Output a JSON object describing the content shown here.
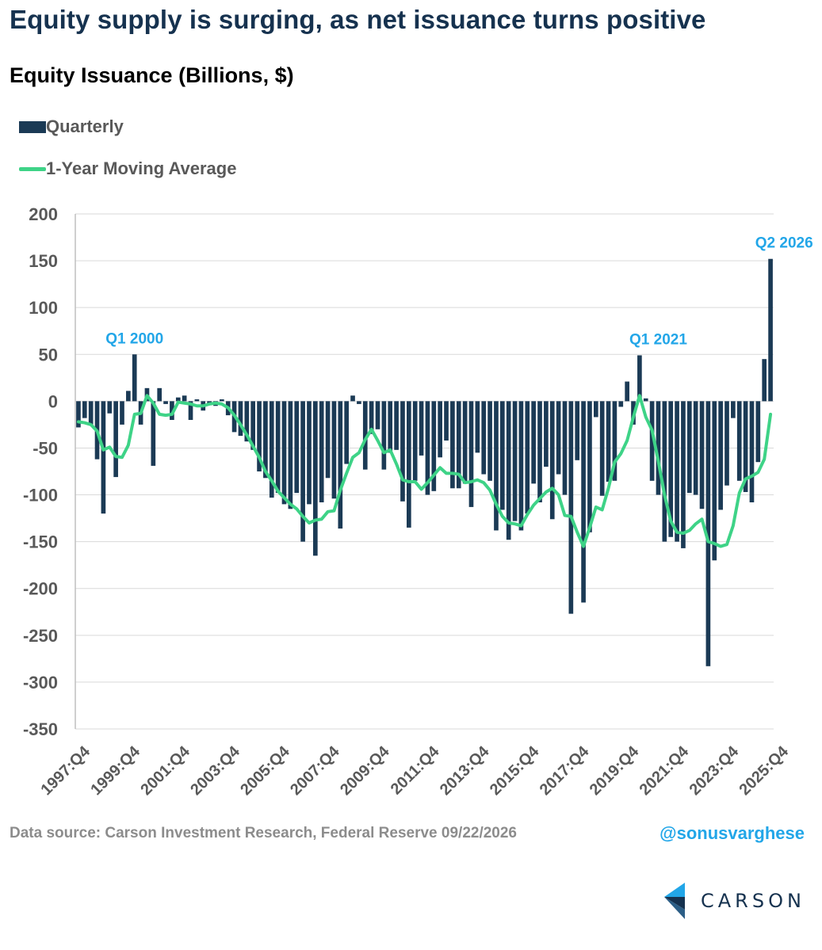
{
  "header": {
    "title": "Equity supply is surging, as net issuance turns positive"
  },
  "colors": {
    "bar": "#1b3a55",
    "line": "#3ed387",
    "annotation": "#22a6e8",
    "axis_text": "#595959",
    "grid": "#d9d9d9"
  },
  "chart_data": {
    "type": "bar",
    "title": "Equity Issuance (Billions, $)",
    "xlabel": "",
    "ylabel": "",
    "ylim": [
      -350,
      200
    ],
    "yticks": [
      200,
      150,
      100,
      50,
      0,
      -50,
      -100,
      -150,
      -200,
      -250,
      -300,
      -350
    ],
    "grid": true,
    "legend_position": "top-left",
    "x_tick_labels": [
      "1997:Q4",
      "1999:Q4",
      "2001:Q4",
      "2003:Q4",
      "2005:Q4",
      "2007:Q4",
      "2009:Q4",
      "2011:Q4",
      "2013:Q4",
      "2015:Q4",
      "2017:Q4",
      "2019:Q4",
      "2021:Q4",
      "2023:Q4",
      "2025:Q4"
    ],
    "first_period": "1997:Q4",
    "last_period": "2026:Q2",
    "series": [
      {
        "name": "Quarterly",
        "type": "bar",
        "values": [
          -28,
          -18,
          -25,
          -62,
          -120,
          -13,
          -81,
          -25,
          11,
          50,
          -25,
          14,
          -69,
          14,
          -3,
          -20,
          4,
          6,
          -20,
          2,
          -10,
          -4,
          -5,
          2,
          -15,
          -33,
          -37,
          -43,
          -52,
          -75,
          -82,
          -103,
          -98,
          -110,
          -115,
          -98,
          -150,
          -110,
          -165,
          -108,
          -82,
          -104,
          -136,
          -67,
          6,
          -3,
          -73,
          -35,
          -30,
          -73,
          -55,
          -52,
          -107,
          -135,
          -85,
          -58,
          -100,
          -96,
          -60,
          -42,
          -93,
          -93,
          -88,
          -113,
          -55,
          -78,
          -85,
          -138,
          -116,
          -148,
          -128,
          -138,
          -120,
          -88,
          -108,
          -70,
          -126,
          -78,
          -100,
          -227,
          -63,
          -215,
          -140,
          -17,
          -101,
          -86,
          -85,
          -6,
          21,
          -25,
          49,
          3,
          -85,
          -100,
          -150,
          -145,
          -150,
          -157,
          -98,
          -100,
          -115,
          -283,
          -170,
          -116,
          -90,
          -18,
          -85,
          -97,
          -108,
          -65,
          45,
          152
        ]
      },
      {
        "name": "1-Year Moving Average",
        "type": "line",
        "values": [
          -22,
          -23,
          -25,
          -32,
          -52,
          -49,
          -59,
          -60,
          -47,
          -14,
          -13,
          6,
          -2,
          -14,
          -15,
          -14,
          -1,
          -2,
          -3,
          -5,
          -5,
          -3,
          -2,
          -3,
          -7,
          -15,
          -25,
          -36,
          -48,
          -60,
          -75,
          -85,
          -96,
          -103,
          -110,
          -115,
          -123,
          -130,
          -127,
          -126,
          -118,
          -117,
          -95,
          -77,
          -60,
          -55,
          -41,
          -30,
          -42,
          -55,
          -52,
          -67,
          -84,
          -86,
          -86,
          -94,
          -87,
          -79,
          -71,
          -77,
          -77,
          -78,
          -87,
          -86,
          -84,
          -87,
          -95,
          -110,
          -123,
          -130,
          -131,
          -133,
          -121,
          -111,
          -104,
          -97,
          -93,
          -100,
          -122,
          -123,
          -140,
          -155,
          -135,
          -113,
          -116,
          -93,
          -65,
          -56,
          -42,
          -17,
          6,
          -17,
          -31,
          -64,
          -100,
          -128,
          -140,
          -141,
          -138,
          -131,
          -126,
          -150,
          -152,
          -155,
          -153,
          -133,
          -98,
          -83,
          -80,
          -76,
          -62,
          -14
        ]
      }
    ],
    "annotations": [
      {
        "text": "Q1 2000",
        "period": "2000:Q1",
        "value": 50
      },
      {
        "text": "Q1 2021",
        "period": "2021:Q1",
        "value": 49
      },
      {
        "text": "Q2 2026",
        "period": "2026:Q2",
        "value": 152
      }
    ]
  },
  "footer": {
    "source": "Data source: Carson Investment Research, Federal Reserve 09/22/2026",
    "handle": "@sonusvarghese",
    "logo_text": "CARSON"
  }
}
